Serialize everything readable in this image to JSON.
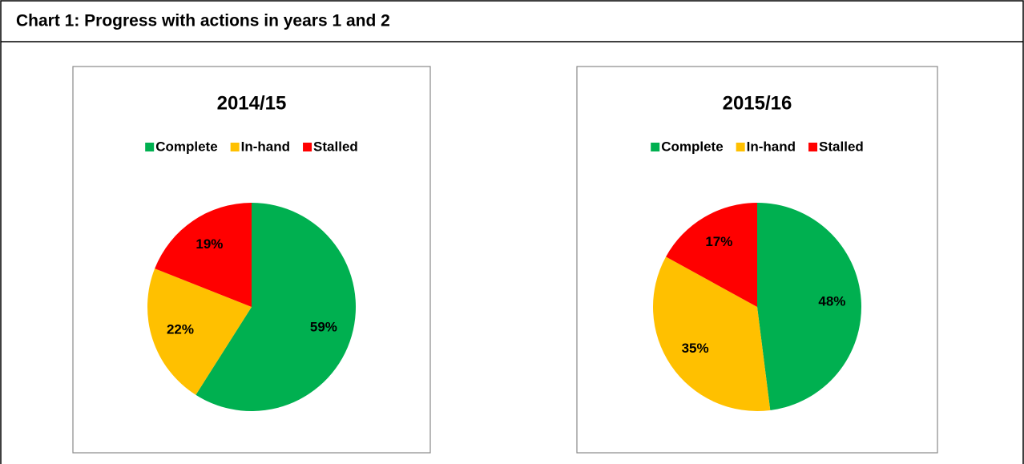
{
  "title": "Chart 1: Progress with actions in years 1 and 2",
  "chart_data": [
    {
      "type": "pie",
      "title": "2014/15",
      "categories": [
        "Complete",
        "In-hand",
        "Stalled"
      ],
      "values": [
        59,
        22,
        19
      ],
      "value_labels": [
        "59%",
        "22%",
        "19%"
      ],
      "colors": [
        "#00b050",
        "#ffc000",
        "#ff0000"
      ],
      "legend": "top"
    },
    {
      "type": "pie",
      "title": "2015/16",
      "categories": [
        "Complete",
        "In-hand",
        "Stalled"
      ],
      "values": [
        48,
        35,
        17
      ],
      "value_labels": [
        "48%",
        "35%",
        "17%"
      ],
      "colors": [
        "#00b050",
        "#ffc000",
        "#ff0000"
      ],
      "legend": "top"
    }
  ]
}
